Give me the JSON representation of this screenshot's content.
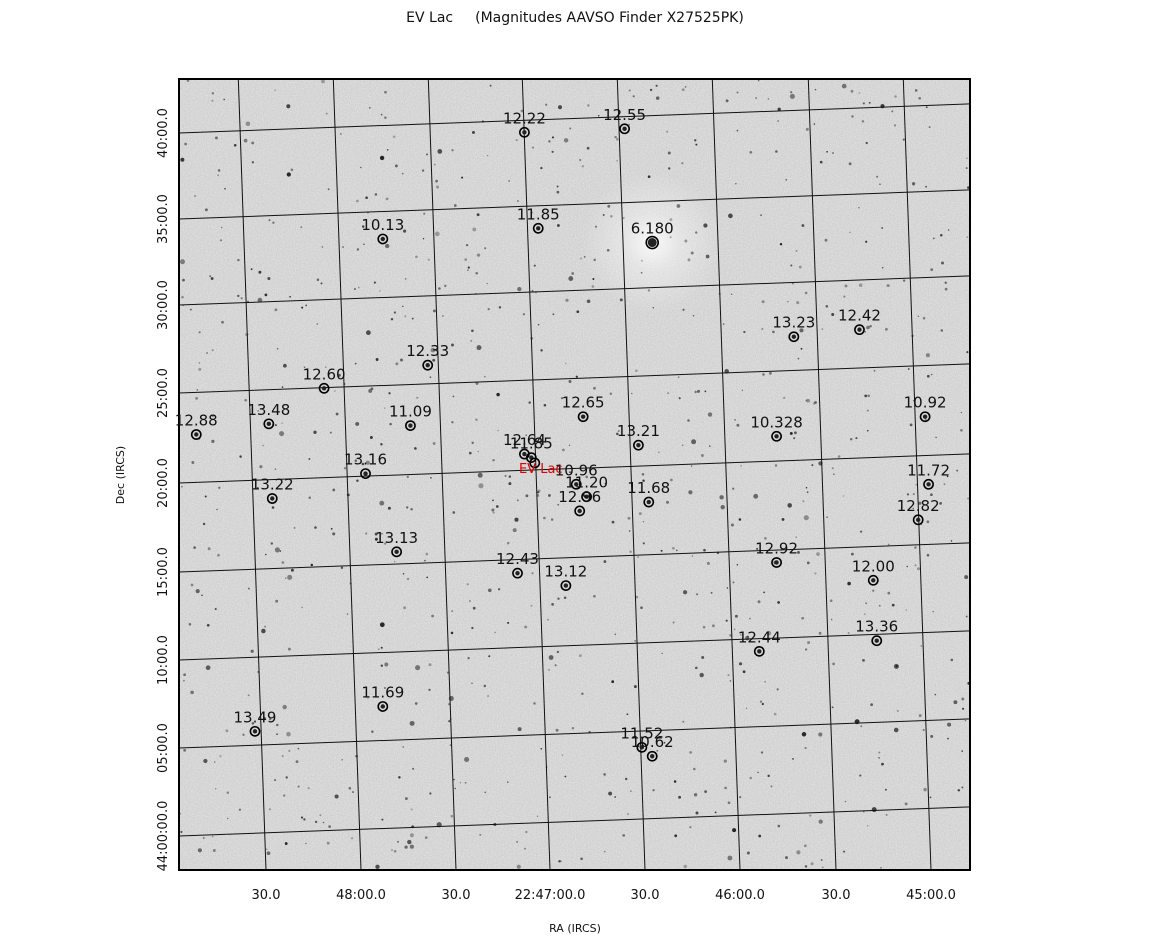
{
  "title": {
    "object": "EV Lac",
    "source": "(Magnitudes AAVSO Finder X27525PK)"
  },
  "axes": {
    "x_label": "RA (IRCS)",
    "y_label": "Dec (IRCS)",
    "x_ticks": [
      "30.0",
      "48:00.0",
      "30.0",
      "22:47:00.0",
      "30.0",
      "46:00.0",
      "30.0",
      "45:00.0"
    ],
    "y_ticks": [
      "40:00.0",
      "35:00.0",
      "30:00.0",
      "25:00.0",
      "20:00.0",
      "15:00.0",
      "10:00.0",
      "05:00.0",
      "44:00:00.0"
    ]
  },
  "target": {
    "name": "EV Lac",
    "color": "#e00000"
  },
  "colors": {
    "frame": "#000000",
    "grid": "#111111",
    "sky": "#cdcdcd"
  },
  "chart_data": {
    "type": "scatter",
    "x_unit": "RA offset (s of time, east positive, relative to 22:47:00.0)",
    "y_unit": "Dec (arcmin above 44:00:00.0)",
    "title": "EV Lac     (Magnitudes AAVSO Finder X27525PK)",
    "xlabel": "RA (IRCS)",
    "ylabel": "Dec (IRCS)",
    "xlim": [
      -122,
      107
    ],
    "ylim": [
      -1.7,
      42.8
    ],
    "stars": [
      {
        "label": "12.22",
        "x": 7,
        "y": 39.8
      },
      {
        "label": "12.55",
        "x": -22,
        "y": 40.0
      },
      {
        "label": "10.13",
        "x": 48,
        "y": 33.8
      },
      {
        "label": "11.85",
        "x": 3,
        "y": 34.4
      },
      {
        "label": "6.180",
        "x": -30,
        "y": 33.6
      },
      {
        "label": "13.23",
        "x": -71,
        "y": 28.3
      },
      {
        "label": "12.42",
        "x": -90,
        "y": 28.7
      },
      {
        "label": "12.33",
        "x": 35,
        "y": 26.7
      },
      {
        "label": "12.60",
        "x": 65,
        "y": 25.4
      },
      {
        "label": "13.48",
        "x": 81,
        "y": 23.4
      },
      {
        "label": "11.09",
        "x": 40,
        "y": 23.3
      },
      {
        "label": "12.65",
        "x": -10,
        "y": 23.8
      },
      {
        "label": "10.328",
        "x": -66,
        "y": 22.7
      },
      {
        "label": "10.92",
        "x": -109,
        "y": 23.8
      },
      {
        "label": "12.88",
        "x": 102,
        "y": 22.8
      },
      {
        "label": "13.21",
        "x": -26,
        "y": 22.2
      },
      {
        "label": "12.64",
        "x": 7,
        "y": 21.7
      },
      {
        "label": "11.85",
        "x": 5,
        "y": 21.5
      },
      {
        "label": "13.16",
        "x": 53,
        "y": 20.6
      },
      {
        "label": "10.96",
        "x": -8,
        "y": 20.0
      },
      {
        "label": "11.72",
        "x": -110,
        "y": 20.0
      },
      {
        "label": "11.20",
        "x": -11,
        "y": 19.3
      },
      {
        "label": "13.22",
        "x": 80,
        "y": 19.2
      },
      {
        "label": "11.68",
        "x": -29,
        "y": 19.0
      },
      {
        "label": "12.96",
        "x": -9,
        "y": 18.5
      },
      {
        "label": "12.82",
        "x": -107,
        "y": 18.0
      },
      {
        "label": "13.13",
        "x": 44,
        "y": 16.2
      },
      {
        "label": "12.43",
        "x": 9,
        "y": 15.0
      },
      {
        "label": "12.92",
        "x": -66,
        "y": 15.6
      },
      {
        "label": "13.12",
        "x": -5,
        "y": 14.3
      },
      {
        "label": "12.00",
        "x": -94,
        "y": 14.6
      },
      {
        "label": "12.44",
        "x": -61,
        "y": 10.6
      },
      {
        "label": "13.36",
        "x": -95,
        "y": 11.2
      },
      {
        "label": "11.69",
        "x": 48,
        "y": 7.5
      },
      {
        "label": "13.49",
        "x": 85,
        "y": 6.1
      },
      {
        "label": "11.52",
        "x": -27,
        "y": 5.2
      },
      {
        "label": "10.62",
        "x": -30,
        "y": 4.7
      }
    ],
    "target_star": {
      "label": "EV Lac",
      "x": 4,
      "y": 21.2
    },
    "grid": true
  }
}
